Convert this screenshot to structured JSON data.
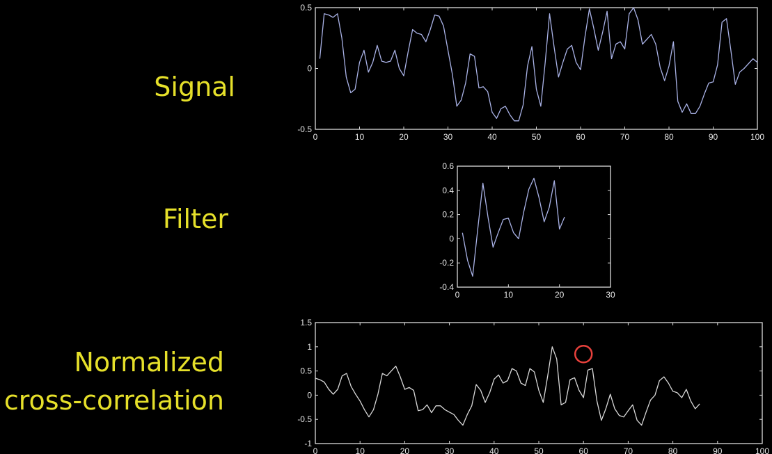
{
  "labels": {
    "signal": "Signal",
    "filter": "Filter",
    "ncc_line1": "Normalized",
    "ncc_line2": "cross-correlation"
  },
  "colors": {
    "label": "#e6e02a",
    "signal_line": "#a9b2e6",
    "ncc_line": "#d8d8d8",
    "marker": "#e8413c"
  },
  "chart_data": [
    {
      "id": "signal",
      "type": "line",
      "title": "Signal",
      "xlim": [
        0,
        100
      ],
      "ylim": [
        -0.5,
        0.5
      ],
      "xticks": [
        0,
        10,
        20,
        30,
        40,
        50,
        60,
        70,
        80,
        90,
        100
      ],
      "yticks": [
        -0.5,
        0,
        0.5
      ],
      "ytick_labels": [
        "-0.5",
        "0",
        "0.5"
      ],
      "x_start": 1,
      "values": [
        0.08,
        0.45,
        0.44,
        0.42,
        0.45,
        0.25,
        -0.07,
        -0.2,
        -0.17,
        0.05,
        0.15,
        -0.03,
        0.05,
        0.19,
        0.06,
        0.05,
        0.06,
        0.15,
        0.0,
        -0.06,
        0.14,
        0.32,
        0.29,
        0.28,
        0.22,
        0.32,
        0.44,
        0.43,
        0.35,
        0.15,
        -0.05,
        -0.31,
        -0.26,
        -0.12,
        0.12,
        0.1,
        -0.16,
        -0.15,
        -0.19,
        -0.36,
        -0.41,
        -0.33,
        -0.31,
        -0.38,
        -0.43,
        -0.43,
        -0.3,
        0.02,
        0.18,
        -0.17,
        -0.31,
        0.05,
        0.45,
        0.18,
        -0.07,
        0.05,
        0.16,
        0.19,
        0.05,
        -0.01,
        0.26,
        0.49,
        0.33,
        0.15,
        0.3,
        0.47,
        0.08,
        0.2,
        0.22,
        0.16,
        0.45,
        0.5,
        0.4,
        0.2,
        0.24,
        0.28,
        0.2,
        0.01,
        -0.1,
        0.02,
        0.22,
        -0.27,
        -0.36,
        -0.29,
        -0.37,
        -0.37,
        -0.31,
        -0.21,
        -0.12,
        -0.11,
        0.03,
        0.38,
        0.41,
        0.15,
        -0.13,
        -0.03,
        0.0,
        0.04,
        0.08,
        0.05
      ]
    },
    {
      "id": "filter",
      "type": "line",
      "title": "Filter",
      "xlim": [
        0,
        30
      ],
      "ylim": [
        -0.4,
        0.6
      ],
      "xticks": [
        0,
        10,
        20,
        30
      ],
      "yticks": [
        -0.4,
        -0.2,
        0,
        0.2,
        0.4,
        0.6
      ],
      "ytick_labels": [
        "-0.4",
        "-0.2",
        "0",
        "0.2",
        "0.4",
        "0.6"
      ],
      "x_start": 1,
      "values": [
        0.05,
        -0.18,
        -0.31,
        0.08,
        0.46,
        0.18,
        -0.07,
        0.05,
        0.16,
        0.17,
        0.05,
        0.0,
        0.22,
        0.41,
        0.5,
        0.34,
        0.14,
        0.26,
        0.48,
        0.08,
        0.18
      ]
    },
    {
      "id": "ncc",
      "type": "line",
      "title": "Normalized cross-correlation",
      "xlim": [
        0,
        100
      ],
      "ylim": [
        -1,
        1.5
      ],
      "xticks": [
        0,
        10,
        20,
        30,
        40,
        50,
        60,
        70,
        80,
        90,
        100
      ],
      "yticks": [
        -1,
        -0.5,
        0,
        0.5,
        1,
        1.5
      ],
      "ytick_labels": [
        "-1",
        "-0.5",
        "0",
        "0.5",
        "1",
        "1.5"
      ],
      "x_start": 0,
      "values": [
        0.35,
        0.32,
        0.27,
        0.12,
        0.02,
        0.12,
        0.4,
        0.45,
        0.18,
        0.02,
        -0.12,
        -0.3,
        -0.45,
        -0.3,
        0.02,
        0.45,
        0.4,
        0.5,
        0.6,
        0.38,
        0.12,
        0.16,
        0.1,
        -0.32,
        -0.3,
        -0.2,
        -0.36,
        -0.22,
        -0.22,
        -0.3,
        -0.35,
        -0.4,
        -0.52,
        -0.62,
        -0.4,
        -0.22,
        0.22,
        0.1,
        -0.15,
        0.05,
        0.33,
        0.42,
        0.25,
        0.3,
        0.55,
        0.5,
        0.25,
        0.2,
        0.55,
        0.48,
        0.1,
        -0.15,
        0.4,
        1.0,
        0.75,
        -0.2,
        -0.15,
        0.32,
        0.36,
        0.1,
        -0.05,
        0.52,
        0.55,
        -0.12,
        -0.52,
        -0.28,
        0.02,
        -0.28,
        -0.42,
        -0.45,
        -0.32,
        -0.2,
        -0.52,
        -0.62,
        -0.35,
        -0.1,
        0.0,
        0.3,
        0.38,
        0.25,
        0.08,
        0.05,
        -0.05,
        0.12,
        -0.12,
        -0.28,
        -0.18
      ],
      "marker": {
        "x": 60,
        "y": 0.85
      }
    }
  ]
}
